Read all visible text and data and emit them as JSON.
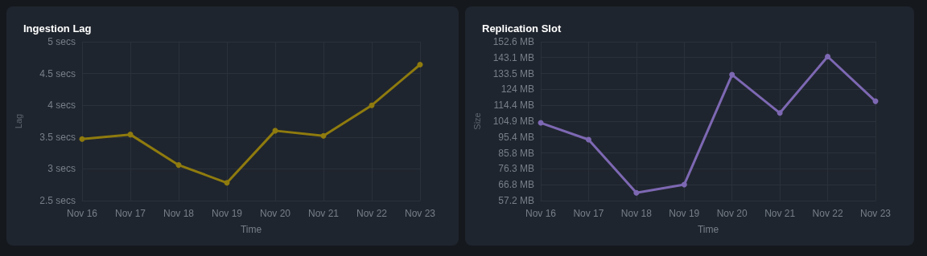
{
  "chart_data": [
    {
      "type": "line",
      "title": "Ingestion Lag",
      "xlabel": "Time",
      "ylabel": "Lag",
      "categories": [
        "Nov 16",
        "Nov 17",
        "Nov 18",
        "Nov 19",
        "Nov 20",
        "Nov 21",
        "Nov 22",
        "Nov 23"
      ],
      "series": [
        {
          "color": "#8f7b0e",
          "values": [
            3.47,
            3.54,
            3.06,
            2.78,
            3.6,
            3.52,
            4.0,
            4.64
          ]
        }
      ],
      "ylim": [
        2.5,
        5
      ],
      "yticks": [
        {
          "value": 2.5,
          "label": "2.5 secs"
        },
        {
          "value": 3,
          "label": "3 secs"
        },
        {
          "value": 3.5,
          "label": "3.5 secs"
        },
        {
          "value": 4,
          "label": "4 secs"
        },
        {
          "value": 4.5,
          "label": "4.5 secs"
        },
        {
          "value": 5,
          "label": "5 secs"
        }
      ],
      "grid": true,
      "marker": "circle",
      "line_style": "solid"
    },
    {
      "type": "line",
      "title": "Replication Slot",
      "xlabel": "Time",
      "ylabel": "Size",
      "categories": [
        "Nov 16",
        "Nov 17",
        "Nov 18",
        "Nov 19",
        "Nov 20",
        "Nov 21",
        "Nov 22",
        "Nov 23"
      ],
      "series": [
        {
          "color": "#7d68b3",
          "values": [
            103.9,
            93.8,
            61.9,
            66.8,
            132.8,
            109.8,
            143.7,
            116.9
          ]
        }
      ],
      "ylim": [
        57.2,
        152.6
      ],
      "yticks": [
        {
          "value": 57.2,
          "label": "57.2 MB"
        },
        {
          "value": 66.8,
          "label": "66.8 MB"
        },
        {
          "value": 76.3,
          "label": "76.3 MB"
        },
        {
          "value": 85.8,
          "label": "85.8 MB"
        },
        {
          "value": 95.4,
          "label": "95.4 MB"
        },
        {
          "value": 104.9,
          "label": "104.9 MB"
        },
        {
          "value": 114.4,
          "label": "114.4 MB"
        },
        {
          "value": 124,
          "label": "124 MB"
        },
        {
          "value": 133.5,
          "label": "133.5 MB"
        },
        {
          "value": 143.1,
          "label": "143.1 MB"
        },
        {
          "value": 152.6,
          "label": "152.6 MB"
        }
      ],
      "grid": true,
      "marker": "circle",
      "line_style": "solid"
    }
  ]
}
